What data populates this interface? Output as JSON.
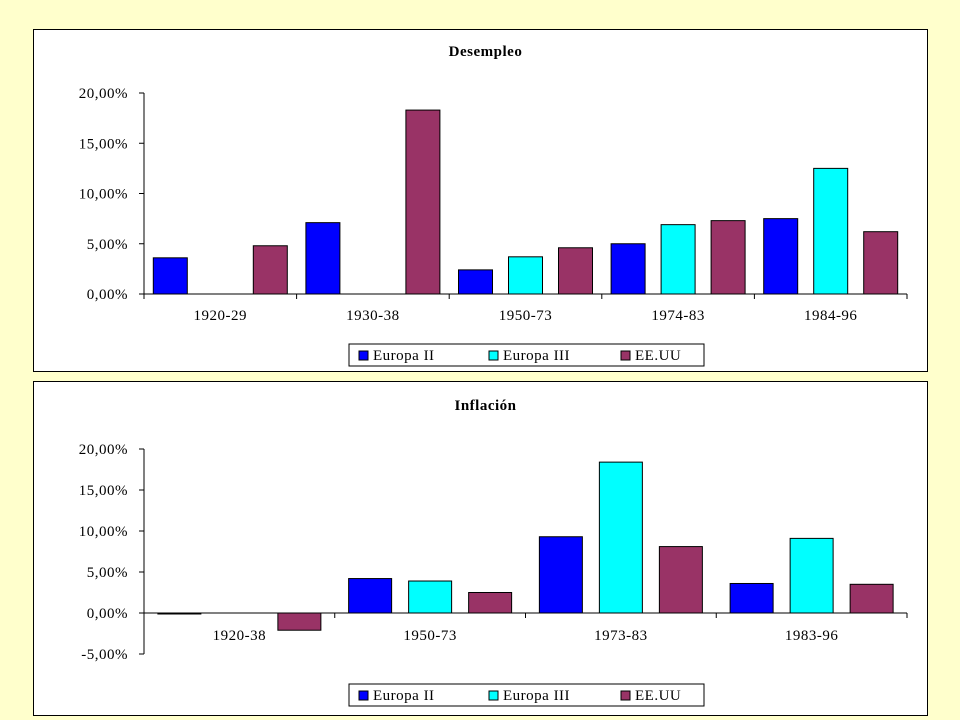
{
  "chart_data": [
    {
      "type": "bar",
      "title": "Desempleo",
      "categories": [
        "1920-29",
        "1930-38",
        "1950-73",
        "1974-83",
        "1984-96"
      ],
      "series": [
        {
          "name": "Europa II",
          "color": "#0000FF",
          "values": [
            3.6,
            7.1,
            2.4,
            5.0,
            7.5
          ]
        },
        {
          "name": "Europa III",
          "color": "#00FFFF",
          "values": [
            null,
            null,
            3.7,
            6.9,
            12.5
          ]
        },
        {
          "name": "EE.UU",
          "color": "#993366",
          "values": [
            4.8,
            18.3,
            4.6,
            7.3,
            6.2
          ]
        }
      ],
      "ylim": [
        0,
        20
      ],
      "y_ticks": [
        "0,00%",
        "5,00%",
        "10,00%",
        "15,00%",
        "20,00%"
      ],
      "grid": false,
      "legend_position": "bottom-right"
    },
    {
      "type": "bar",
      "title": "Inflación",
      "categories": [
        "1920-38",
        "1950-73",
        "1973-83",
        "1983-96"
      ],
      "series": [
        {
          "name": "Europa II",
          "color": "#0000FF",
          "values": [
            -0.1,
            4.2,
            9.3,
            3.6
          ]
        },
        {
          "name": "Europa III",
          "color": "#00FFFF",
          "values": [
            null,
            3.9,
            18.4,
            9.1
          ]
        },
        {
          "name": "EE.UU",
          "color": "#993366",
          "values": [
            -2.1,
            2.5,
            8.1,
            3.5
          ]
        }
      ],
      "ylim": [
        -5,
        20
      ],
      "y_ticks": [
        "-5,00%",
        "0,00%",
        "5,00%",
        "10,00%",
        "15,00%",
        "20,00%"
      ],
      "grid": false,
      "legend_position": "bottom-right"
    }
  ]
}
